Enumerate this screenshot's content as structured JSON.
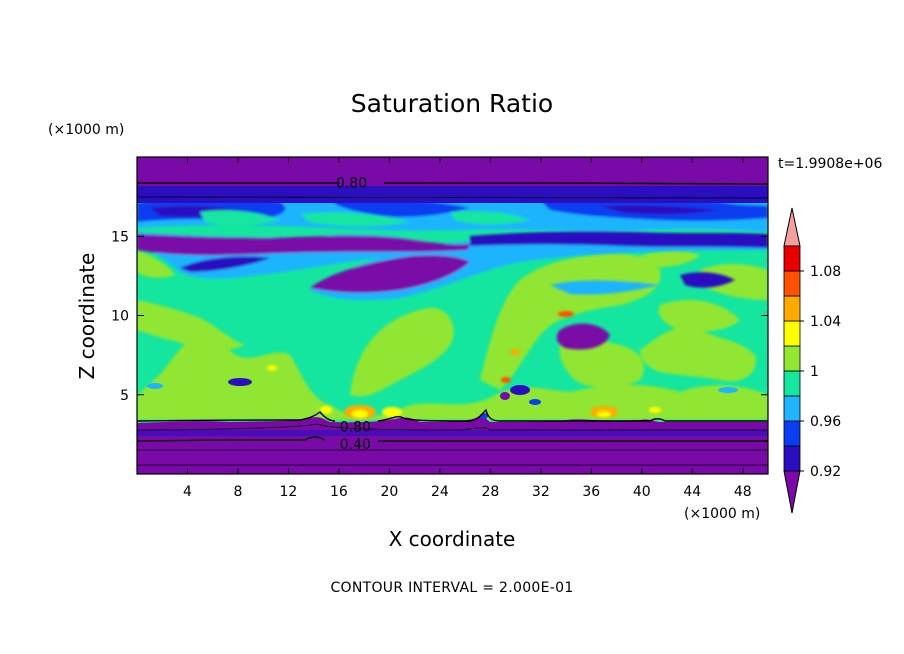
{
  "chart_data": {
    "type": "heatmap",
    "title": "Saturation Ratio",
    "xlabel": "X coordinate",
    "ylabel": "Z coordinate",
    "x_unit": "(×1000 m)",
    "y_unit": "(×1000 m)",
    "time_label": "t=1.9908e+06",
    "footer": "CONTOUR INTERVAL = 2.000E-01",
    "xlim": [
      0,
      50
    ],
    "ylim": [
      0,
      20
    ],
    "x_ticks": [
      4,
      8,
      12,
      16,
      20,
      24,
      28,
      32,
      36,
      40,
      44,
      48
    ],
    "y_ticks": [
      5,
      10,
      15
    ],
    "contour_labels": [
      {
        "text": "0.80",
        "x": 17.0,
        "z": 18.4
      },
      {
        "text": "0.80",
        "x": 17.3,
        "z": 3.0
      },
      {
        "text": "0.40",
        "x": 17.3,
        "z": 1.9
      }
    ],
    "colorbar": {
      "levels": [
        0.92,
        0.94,
        0.96,
        0.98,
        1.0,
        1.02,
        1.04,
        1.06,
        1.08,
        1.1
      ],
      "tick_labels": [
        "0.92",
        "0.96",
        "1",
        "1.04",
        "1.08"
      ],
      "colors": [
        "#7a0aa8",
        "#2a0ec0",
        "#0a3cf0",
        "#1eb4ff",
        "#14e6a0",
        "#90e632",
        "#ffff00",
        "#ffaa00",
        "#ff5000",
        "#e80000",
        "#f4a0a0"
      ]
    }
  }
}
